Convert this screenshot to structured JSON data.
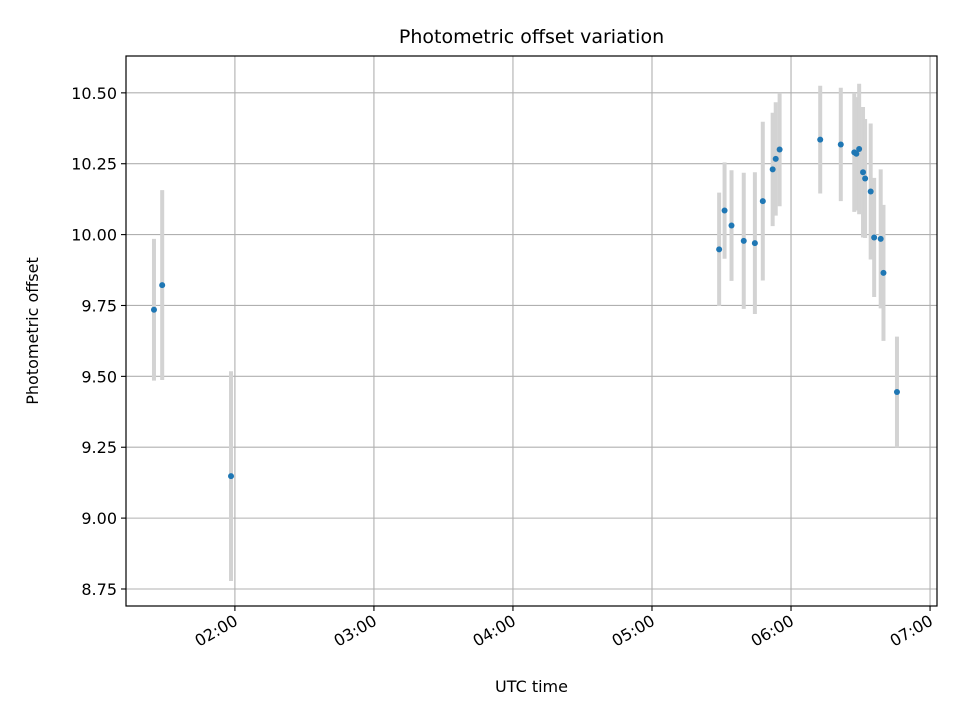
{
  "chart_data": {
    "type": "scatter",
    "title": "Photometric offset variation",
    "xlabel": "UTC time",
    "ylabel": "Photometric offset",
    "grid": true,
    "xlim": [
      1.2167,
      7.05
    ],
    "ylim": [
      8.69,
      10.63
    ],
    "x_unit": "hours UTC",
    "x_ticks": [
      2,
      3,
      4,
      5,
      6,
      7
    ],
    "x_tick_labels": [
      "02:00",
      "03:00",
      "04:00",
      "05:00",
      "06:00",
      "07:00"
    ],
    "y_ticks": [
      8.75,
      9.0,
      9.25,
      9.5,
      9.75,
      10.0,
      10.25,
      10.5
    ],
    "y_tick_labels": [
      "8.75",
      "9.00",
      "9.25",
      "9.50",
      "9.75",
      "10.00",
      "10.25",
      "10.50"
    ],
    "series": [
      {
        "name": "offset",
        "marker_color": "#1f77b4",
        "errorbar_color": "#d3d3d3",
        "points": [
          {
            "x": 1.418,
            "y": 9.735,
            "err": 0.25
          },
          {
            "x": 1.477,
            "y": 9.822,
            "err": 0.335
          },
          {
            "x": 1.972,
            "y": 9.148,
            "err": 0.37
          },
          {
            "x": 5.483,
            "y": 9.948,
            "err": 0.2
          },
          {
            "x": 5.522,
            "y": 10.085,
            "err": 0.17
          },
          {
            "x": 5.572,
            "y": 10.032,
            "err": 0.195
          },
          {
            "x": 5.66,
            "y": 9.978,
            "err": 0.24
          },
          {
            "x": 5.74,
            "y": 9.97,
            "err": 0.25
          },
          {
            "x": 5.797,
            "y": 10.118,
            "err": 0.28
          },
          {
            "x": 5.868,
            "y": 10.23,
            "err": 0.2
          },
          {
            "x": 5.89,
            "y": 10.267,
            "err": 0.2
          },
          {
            "x": 5.918,
            "y": 10.3,
            "err": 0.2
          },
          {
            "x": 6.21,
            "y": 10.335,
            "err": 0.19
          },
          {
            "x": 6.358,
            "y": 10.318,
            "err": 0.2
          },
          {
            "x": 6.455,
            "y": 10.29,
            "err": 0.21
          },
          {
            "x": 6.47,
            "y": 10.285,
            "err": 0.2
          },
          {
            "x": 6.49,
            "y": 10.302,
            "err": 0.23
          },
          {
            "x": 6.518,
            "y": 10.22,
            "err": 0.23
          },
          {
            "x": 6.533,
            "y": 10.198,
            "err": 0.21
          },
          {
            "x": 6.573,
            "y": 10.152,
            "err": 0.24
          },
          {
            "x": 6.598,
            "y": 9.99,
            "err": 0.21
          },
          {
            "x": 6.645,
            "y": 9.985,
            "err": 0.245
          },
          {
            "x": 6.665,
            "y": 9.865,
            "err": 0.24
          },
          {
            "x": 6.762,
            "y": 9.445,
            "err": 0.195
          }
        ]
      }
    ]
  }
}
